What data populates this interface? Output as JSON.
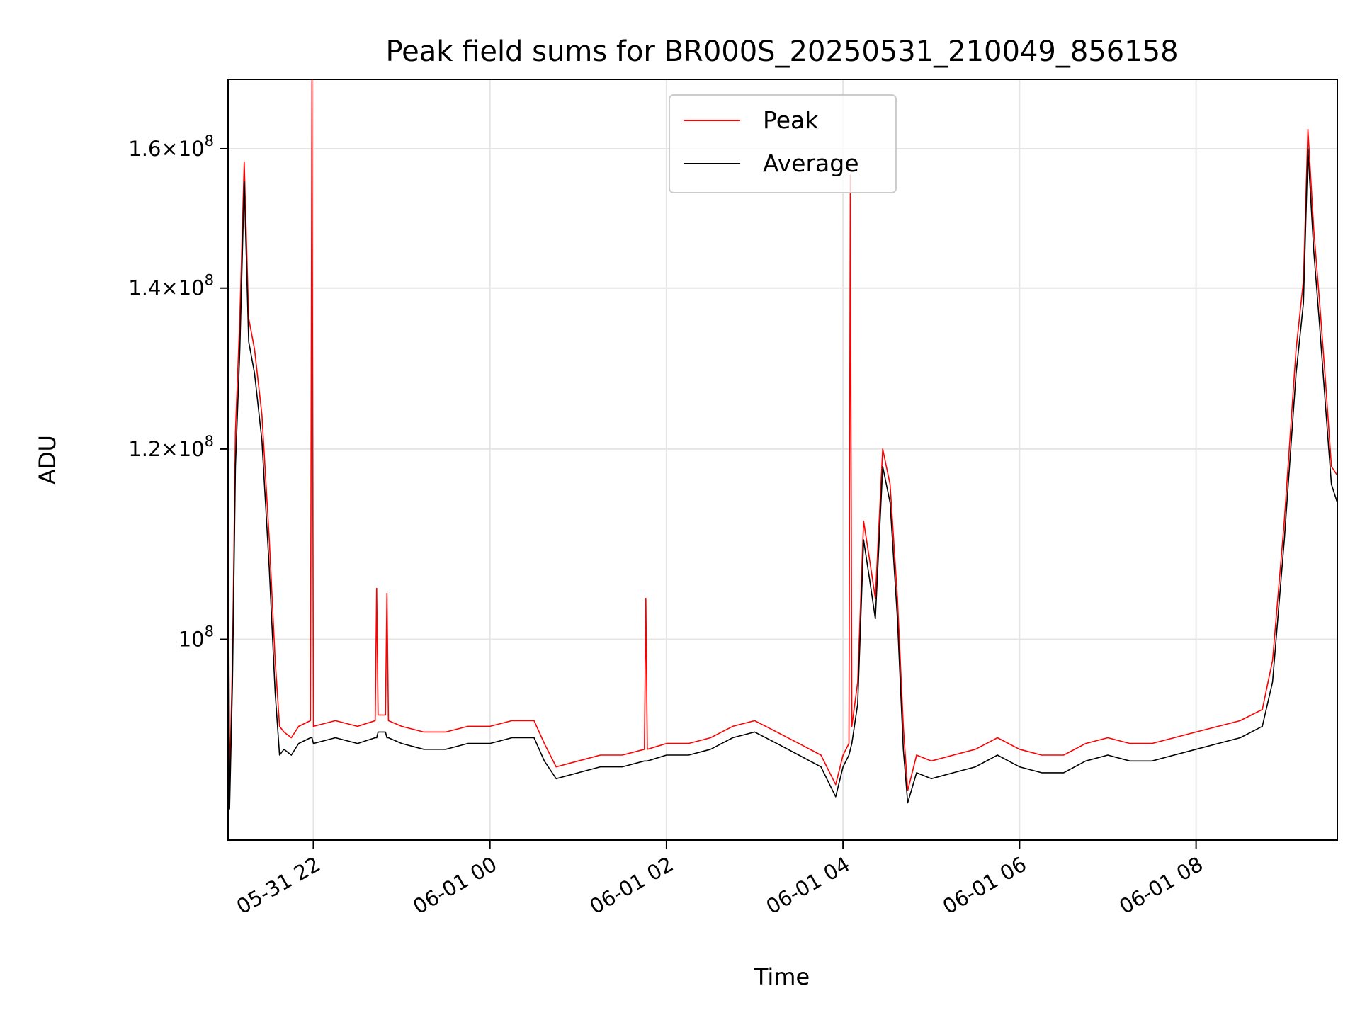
{
  "chart_data": {
    "type": "line",
    "title": "Peak field sums for BR000S_20250531_210049_856158",
    "xlabel": "Time",
    "ylabel": "ADU",
    "y_scale": "log",
    "ylim": [
      82500000,
      171000000
    ],
    "xlim": [
      "2025-05-31 21:02",
      "2025-06-01 09:36"
    ],
    "grid": true,
    "legend_position": "upper center",
    "x_ticks": [
      {
        "label": "05-31 22",
        "time": "2025-05-31 22:00"
      },
      {
        "label": "06-01 00",
        "time": "2025-06-01 00:00"
      },
      {
        "label": "06-01 02",
        "time": "2025-06-01 02:00"
      },
      {
        "label": "06-01 04",
        "time": "2025-06-01 04:00"
      },
      {
        "label": "06-01 06",
        "time": "2025-06-01 06:00"
      },
      {
        "label": "06-01 08",
        "time": "2025-06-01 08:00"
      }
    ],
    "y_ticks": [
      {
        "value": 100000000,
        "mantissa": "",
        "base": "10",
        "exp": "8"
      },
      {
        "value": 120000000,
        "mantissa": "1.2",
        "base": "10",
        "exp": "8"
      },
      {
        "value": 140000000,
        "mantissa": "1.4",
        "base": "10",
        "exp": "8"
      },
      {
        "value": 160000000,
        "mantissa": "1.6",
        "base": "10",
        "exp": "8"
      }
    ],
    "series": [
      {
        "name": "Peak",
        "color": "#ff0000",
        "points": [
          [
            "2025-05-31 21:02",
            118000000
          ],
          [
            "2025-05-31 21:03",
            87000000
          ],
          [
            "2025-05-31 21:05",
            98000000
          ],
          [
            "2025-05-31 21:07",
            122000000
          ],
          [
            "2025-05-31 21:10",
            136000000
          ],
          [
            "2025-05-31 21:13",
            158000000
          ],
          [
            "2025-05-31 21:16",
            136000000
          ],
          [
            "2025-05-31 21:20",
            132000000
          ],
          [
            "2025-05-31 21:25",
            124000000
          ],
          [
            "2025-05-31 21:30",
            110000000
          ],
          [
            "2025-05-31 21:34",
            98000000
          ],
          [
            "2025-05-31 21:37",
            92000000
          ],
          [
            "2025-05-31 21:40",
            91500000
          ],
          [
            "2025-05-31 21:45",
            91000000
          ],
          [
            "2025-05-31 21:50",
            92000000
          ],
          [
            "2025-05-31 21:58",
            92500000
          ],
          [
            "2025-05-31 21:59",
            171000000
          ],
          [
            "2025-05-31 22:00",
            92000000
          ],
          [
            "2025-05-31 22:15",
            92500000
          ],
          [
            "2025-05-31 22:30",
            92000000
          ],
          [
            "2025-05-31 22:42",
            92500000
          ],
          [
            "2025-05-31 22:43",
            105000000
          ],
          [
            "2025-05-31 22:44",
            93000000
          ],
          [
            "2025-05-31 22:49",
            93000000
          ],
          [
            "2025-05-31 22:50",
            104500000
          ],
          [
            "2025-05-31 22:51",
            92500000
          ],
          [
            "2025-05-31 23:00",
            92000000
          ],
          [
            "2025-05-31 23:15",
            91500000
          ],
          [
            "2025-05-31 23:30",
            91500000
          ],
          [
            "2025-05-31 23:45",
            92000000
          ],
          [
            "2025-06-01 00:00",
            92000000
          ],
          [
            "2025-06-01 00:15",
            92500000
          ],
          [
            "2025-06-01 00:30",
            92500000
          ],
          [
            "2025-06-01 00:37",
            90500000
          ],
          [
            "2025-06-01 00:45",
            88500000
          ],
          [
            "2025-06-01 01:00",
            89000000
          ],
          [
            "2025-06-01 01:15",
            89500000
          ],
          [
            "2025-06-01 01:30",
            89500000
          ],
          [
            "2025-06-01 01:45",
            90000000
          ],
          [
            "2025-06-01 01:46",
            104000000
          ],
          [
            "2025-06-01 01:47",
            90000000
          ],
          [
            "2025-06-01 02:00",
            90500000
          ],
          [
            "2025-06-01 02:15",
            90500000
          ],
          [
            "2025-06-01 02:30",
            91000000
          ],
          [
            "2025-06-01 02:45",
            92000000
          ],
          [
            "2025-06-01 03:00",
            92500000
          ],
          [
            "2025-06-01 03:15",
            91500000
          ],
          [
            "2025-06-01 03:30",
            90500000
          ],
          [
            "2025-06-01 03:45",
            89500000
          ],
          [
            "2025-06-01 03:55",
            87000000
          ],
          [
            "2025-06-01 04:00",
            89500000
          ],
          [
            "2025-06-01 04:04",
            90500000
          ],
          [
            "2025-06-01 04:05",
            156000000
          ],
          [
            "2025-06-01 04:06",
            92000000
          ],
          [
            "2025-06-01 04:10",
            96000000
          ],
          [
            "2025-06-01 04:14",
            112000000
          ],
          [
            "2025-06-01 04:18",
            108000000
          ],
          [
            "2025-06-01 04:22",
            104000000
          ],
          [
            "2025-06-01 04:27",
            120000000
          ],
          [
            "2025-06-01 04:32",
            116000000
          ],
          [
            "2025-06-01 04:37",
            104000000
          ],
          [
            "2025-06-01 04:41",
            92000000
          ],
          [
            "2025-06-01 04:44",
            86500000
          ],
          [
            "2025-06-01 04:50",
            89500000
          ],
          [
            "2025-06-01 05:00",
            89000000
          ],
          [
            "2025-06-01 05:15",
            89500000
          ],
          [
            "2025-06-01 05:30",
            90000000
          ],
          [
            "2025-06-01 05:45",
            91000000
          ],
          [
            "2025-06-01 06:00",
            90000000
          ],
          [
            "2025-06-01 06:15",
            89500000
          ],
          [
            "2025-06-01 06:30",
            89500000
          ],
          [
            "2025-06-01 06:45",
            90500000
          ],
          [
            "2025-06-01 07:00",
            91000000
          ],
          [
            "2025-06-01 07:15",
            90500000
          ],
          [
            "2025-06-01 07:30",
            90500000
          ],
          [
            "2025-06-01 07:45",
            91000000
          ],
          [
            "2025-06-01 08:00",
            91500000
          ],
          [
            "2025-06-01 08:15",
            92000000
          ],
          [
            "2025-06-01 08:30",
            92500000
          ],
          [
            "2025-06-01 08:45",
            93500000
          ],
          [
            "2025-06-01 08:52",
            98000000
          ],
          [
            "2025-06-01 09:00",
            112000000
          ],
          [
            "2025-06-01 09:08",
            132000000
          ],
          [
            "2025-06-01 09:13",
            141000000
          ],
          [
            "2025-06-01 09:16",
            163000000
          ],
          [
            "2025-06-01 09:20",
            148000000
          ],
          [
            "2025-06-01 09:24",
            138000000
          ],
          [
            "2025-06-01 09:28",
            128000000
          ],
          [
            "2025-06-01 09:32",
            118000000
          ],
          [
            "2025-06-01 09:36",
            117000000
          ]
        ]
      },
      {
        "name": "Average",
        "color": "#000000",
        "points": [
          [
            "2025-05-31 21:02",
            116000000
          ],
          [
            "2025-05-31 21:03",
            85000000
          ],
          [
            "2025-05-31 21:05",
            96000000
          ],
          [
            "2025-05-31 21:07",
            118000000
          ],
          [
            "2025-05-31 21:10",
            132000000
          ],
          [
            "2025-05-31 21:13",
            155000000
          ],
          [
            "2025-05-31 21:16",
            133000000
          ],
          [
            "2025-05-31 21:20",
            129000000
          ],
          [
            "2025-05-31 21:25",
            121000000
          ],
          [
            "2025-05-31 21:30",
            107000000
          ],
          [
            "2025-05-31 21:34",
            95000000
          ],
          [
            "2025-05-31 21:37",
            89500000
          ],
          [
            "2025-05-31 21:40",
            90000000
          ],
          [
            "2025-05-31 21:45",
            89500000
          ],
          [
            "2025-05-31 21:50",
            90500000
          ],
          [
            "2025-05-31 21:58",
            91000000
          ],
          [
            "2025-05-31 21:59",
            91000000
          ],
          [
            "2025-05-31 22:00",
            90500000
          ],
          [
            "2025-05-31 22:15",
            91000000
          ],
          [
            "2025-05-31 22:30",
            90500000
          ],
          [
            "2025-05-31 22:42",
            91000000
          ],
          [
            "2025-05-31 22:43",
            91000000
          ],
          [
            "2025-05-31 22:44",
            91500000
          ],
          [
            "2025-05-31 22:49",
            91500000
          ],
          [
            "2025-05-31 22:50",
            91000000
          ],
          [
            "2025-05-31 22:51",
            91000000
          ],
          [
            "2025-05-31 23:00",
            90500000
          ],
          [
            "2025-05-31 23:15",
            90000000
          ],
          [
            "2025-05-31 23:30",
            90000000
          ],
          [
            "2025-05-31 23:45",
            90500000
          ],
          [
            "2025-06-01 00:00",
            90500000
          ],
          [
            "2025-06-01 00:15",
            91000000
          ],
          [
            "2025-06-01 00:30",
            91000000
          ],
          [
            "2025-06-01 00:37",
            89000000
          ],
          [
            "2025-06-01 00:45",
            87500000
          ],
          [
            "2025-06-01 01:00",
            88000000
          ],
          [
            "2025-06-01 01:15",
            88500000
          ],
          [
            "2025-06-01 01:30",
            88500000
          ],
          [
            "2025-06-01 01:45",
            89000000
          ],
          [
            "2025-06-01 01:46",
            89000000
          ],
          [
            "2025-06-01 01:47",
            89000000
          ],
          [
            "2025-06-01 02:00",
            89500000
          ],
          [
            "2025-06-01 02:15",
            89500000
          ],
          [
            "2025-06-01 02:30",
            90000000
          ],
          [
            "2025-06-01 02:45",
            91000000
          ],
          [
            "2025-06-01 03:00",
            91500000
          ],
          [
            "2025-06-01 03:15",
            90500000
          ],
          [
            "2025-06-01 03:30",
            89500000
          ],
          [
            "2025-06-01 03:45",
            88500000
          ],
          [
            "2025-06-01 03:55",
            86000000
          ],
          [
            "2025-06-01 04:00",
            88500000
          ],
          [
            "2025-06-01 04:04",
            89500000
          ],
          [
            "2025-06-01 04:05",
            90000000
          ],
          [
            "2025-06-01 04:06",
            90500000
          ],
          [
            "2025-06-01 04:10",
            94000000
          ],
          [
            "2025-06-01 04:14",
            110000000
          ],
          [
            "2025-06-01 04:18",
            106000000
          ],
          [
            "2025-06-01 04:22",
            102000000
          ],
          [
            "2025-06-01 04:27",
            118000000
          ],
          [
            "2025-06-01 04:32",
            114000000
          ],
          [
            "2025-06-01 04:37",
            102000000
          ],
          [
            "2025-06-01 04:41",
            90000000
          ],
          [
            "2025-06-01 04:44",
            85500000
          ],
          [
            "2025-06-01 04:50",
            88000000
          ],
          [
            "2025-06-01 05:00",
            87500000
          ],
          [
            "2025-06-01 05:15",
            88000000
          ],
          [
            "2025-06-01 05:30",
            88500000
          ],
          [
            "2025-06-01 05:45",
            89500000
          ],
          [
            "2025-06-01 06:00",
            88500000
          ],
          [
            "2025-06-01 06:15",
            88000000
          ],
          [
            "2025-06-01 06:30",
            88000000
          ],
          [
            "2025-06-01 06:45",
            89000000
          ],
          [
            "2025-06-01 07:00",
            89500000
          ],
          [
            "2025-06-01 07:15",
            89000000
          ],
          [
            "2025-06-01 07:30",
            89000000
          ],
          [
            "2025-06-01 07:45",
            89500000
          ],
          [
            "2025-06-01 08:00",
            90000000
          ],
          [
            "2025-06-01 08:15",
            90500000
          ],
          [
            "2025-06-01 08:30",
            91000000
          ],
          [
            "2025-06-01 08:45",
            92000000
          ],
          [
            "2025-06-01 08:52",
            96000000
          ],
          [
            "2025-06-01 09:00",
            110000000
          ],
          [
            "2025-06-01 09:08",
            129000000
          ],
          [
            "2025-06-01 09:13",
            138000000
          ],
          [
            "2025-06-01 09:16",
            160000000
          ],
          [
            "2025-06-01 09:20",
            145000000
          ],
          [
            "2025-06-01 09:24",
            135000000
          ],
          [
            "2025-06-01 09:28",
            125000000
          ],
          [
            "2025-06-01 09:32",
            116000000
          ],
          [
            "2025-06-01 09:36",
            114000000
          ]
        ]
      }
    ]
  }
}
